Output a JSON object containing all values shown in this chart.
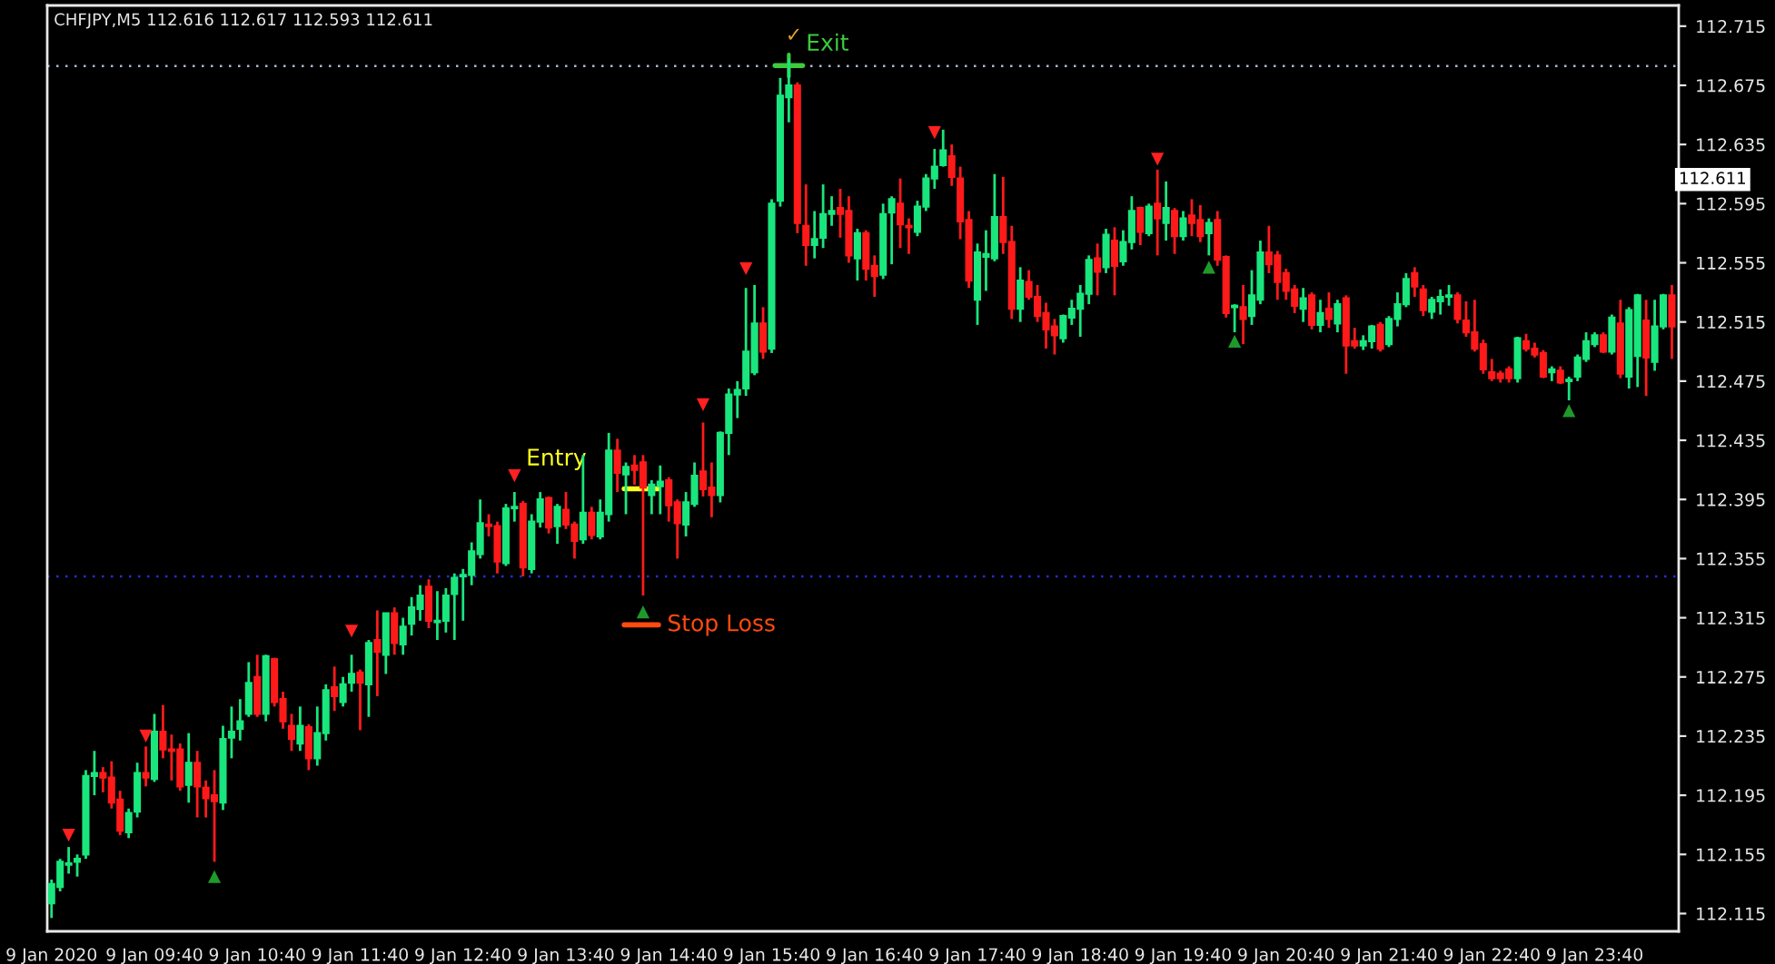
{
  "chart_data": {
    "type": "candlestick",
    "title": "CHFJPY,M5 112.616 112.617 112.593 112.611",
    "categories": [
      "9 Jan 2020",
      null,
      null,
      null,
      null,
      null,
      null,
      null,
      null,
      null,
      null,
      null,
      "9 Jan 09:40",
      null,
      null,
      null,
      null,
      null,
      null,
      null,
      null,
      null,
      null,
      null,
      "9 Jan 10:40",
      null,
      null,
      null,
      null,
      null,
      null,
      null,
      null,
      null,
      null,
      null,
      "9 Jan 11:40",
      null,
      null,
      null,
      null,
      null,
      null,
      null,
      null,
      null,
      null,
      null,
      "9 Jan 12:40",
      null,
      null,
      null,
      null,
      null,
      null,
      null,
      null,
      null,
      null,
      null,
      "9 Jan 13:40",
      null,
      null,
      null,
      null,
      null,
      null,
      null,
      null,
      null,
      null,
      null,
      "9 Jan 14:40",
      null,
      null,
      null,
      null,
      null,
      null,
      null,
      null,
      null,
      null,
      null,
      "9 Jan 15:40",
      null,
      null,
      null,
      null,
      null,
      null,
      null,
      null,
      null,
      null,
      null,
      "9 Jan 16:40",
      null,
      null,
      null,
      null,
      null,
      null,
      null,
      null,
      null,
      null,
      null,
      "9 Jan 17:40",
      null,
      null,
      null,
      null,
      null,
      null,
      null,
      null,
      null,
      null,
      null,
      "9 Jan 18:40",
      null,
      null,
      null,
      null,
      null,
      null,
      null,
      null,
      null,
      null,
      null,
      "9 Jan 19:40",
      null,
      null,
      null,
      null,
      null,
      null,
      null,
      null,
      null,
      null,
      null,
      "9 Jan 20:40",
      null,
      null,
      null,
      null,
      null,
      null,
      null,
      null,
      null,
      null,
      null,
      "9 Jan 21:40",
      null,
      null,
      null,
      null,
      null,
      null,
      null,
      null,
      null,
      null,
      null,
      "9 Jan 22:40",
      null,
      null,
      null,
      null,
      null,
      null,
      null,
      null,
      null,
      null,
      null,
      "9 Jan 23:40",
      null,
      null,
      null,
      null,
      null,
      null,
      null,
      null,
      null
    ],
    "ohlc": [
      [
        112.122,
        112.138,
        112.112,
        112.135
      ],
      [
        112.133,
        112.152,
        112.13,
        112.15
      ],
      [
        112.148,
        112.16,
        112.142,
        112.149
      ],
      [
        112.15,
        112.155,
        112.14,
        112.152
      ],
      [
        112.155,
        112.212,
        112.152,
        112.208
      ],
      [
        112.208,
        112.225,
        112.195,
        112.21
      ],
      [
        112.21,
        112.214,
        112.197,
        112.207
      ],
      [
        112.207,
        112.218,
        112.186,
        112.19
      ],
      [
        112.192,
        112.198,
        112.168,
        112.171
      ],
      [
        112.17,
        112.186,
        112.166,
        112.183
      ],
      [
        112.184,
        112.217,
        112.18,
        112.21
      ],
      [
        112.21,
        112.228,
        112.201,
        112.207
      ],
      [
        112.206,
        112.25,
        112.204,
        112.238
      ],
      [
        112.238,
        112.256,
        112.22,
        112.226
      ],
      [
        112.226,
        112.236,
        112.205,
        112.225
      ],
      [
        112.226,
        112.23,
        112.198,
        112.201
      ],
      [
        112.202,
        112.237,
        112.19,
        112.217
      ],
      [
        112.217,
        112.225,
        112.18,
        112.201
      ],
      [
        112.2,
        112.205,
        112.18,
        112.193
      ],
      [
        112.195,
        112.212,
        112.15,
        112.191
      ],
      [
        112.19,
        112.242,
        112.185,
        112.233
      ],
      [
        112.234,
        112.255,
        112.22,
        112.238
      ],
      [
        112.24,
        112.26,
        112.232,
        112.245
      ],
      [
        112.25,
        112.285,
        112.248,
        112.271
      ],
      [
        112.275,
        112.29,
        112.248,
        112.25
      ],
      [
        112.25,
        112.29,
        112.245,
        112.289
      ],
      [
        112.287,
        112.288,
        112.255,
        112.258
      ],
      [
        112.26,
        112.265,
        112.24,
        112.245
      ],
      [
        112.242,
        112.25,
        112.225,
        112.233
      ],
      [
        112.23,
        112.255,
        112.225,
        112.242
      ],
      [
        112.241,
        112.243,
        112.212,
        112.22
      ],
      [
        112.22,
        112.255,
        112.215,
        112.237
      ],
      [
        112.237,
        112.27,
        112.232,
        112.266
      ],
      [
        112.268,
        112.282,
        112.252,
        112.262
      ],
      [
        112.258,
        112.275,
        112.255,
        112.27
      ],
      [
        112.271,
        112.29,
        112.265,
        112.277
      ],
      [
        112.278,
        112.28,
        112.239,
        112.271
      ],
      [
        112.27,
        112.3,
        112.248,
        112.298
      ],
      [
        112.3,
        112.32,
        112.262,
        112.292
      ],
      [
        112.29,
        112.318,
        112.277,
        112.318
      ],
      [
        112.318,
        112.322,
        112.29,
        112.298
      ],
      [
        112.297,
        112.315,
        112.29,
        112.309
      ],
      [
        112.311,
        112.329,
        112.303,
        112.322
      ],
      [
        112.321,
        112.337,
        112.313,
        112.33
      ],
      [
        112.336,
        112.341,
        112.308,
        112.313
      ],
      [
        112.312,
        112.333,
        112.3,
        112.313
      ],
      [
        112.313,
        112.335,
        112.305,
        112.33
      ],
      [
        112.331,
        112.345,
        112.3,
        112.342
      ],
      [
        112.343,
        112.348,
        112.313,
        112.344
      ],
      [
        112.344,
        112.366,
        112.337,
        112.36
      ],
      [
        112.358,
        112.395,
        112.355,
        112.379
      ],
      [
        112.378,
        112.385,
        112.37,
        112.377
      ],
      [
        112.377,
        112.38,
        112.345,
        112.353
      ],
      [
        112.352,
        112.392,
        112.35,
        112.389
      ],
      [
        112.389,
        112.4,
        112.38,
        112.39
      ],
      [
        112.392,
        112.394,
        112.343,
        112.349
      ],
      [
        112.348,
        112.385,
        112.345,
        112.38
      ],
      [
        112.38,
        112.4,
        112.376,
        112.395
      ],
      [
        112.396,
        112.397,
        112.372,
        112.376
      ],
      [
        112.377,
        112.392,
        112.365,
        112.39
      ],
      [
        112.388,
        112.4,
        112.375,
        112.378
      ],
      [
        112.378,
        112.38,
        112.355,
        112.367
      ],
      [
        112.368,
        112.425,
        112.365,
        112.386
      ],
      [
        112.386,
        112.39,
        112.368,
        112.371
      ],
      [
        112.37,
        112.395,
        112.368,
        112.386
      ],
      [
        112.385,
        112.44,
        112.38,
        112.428
      ],
      [
        112.428,
        112.436,
        112.4,
        112.413
      ],
      [
        112.412,
        112.42,
        112.385,
        112.417
      ],
      [
        112.418,
        112.425,
        112.405,
        112.415
      ],
      [
        112.42,
        112.425,
        112.33,
        112.403
      ],
      [
        112.398,
        112.408,
        112.385,
        112.405
      ],
      [
        112.404,
        112.418,
        112.385,
        112.407
      ],
      [
        112.408,
        112.41,
        112.38,
        112.391
      ],
      [
        112.393,
        112.395,
        112.355,
        112.379
      ],
      [
        112.378,
        112.4,
        112.37,
        112.393
      ],
      [
        112.392,
        112.42,
        112.39,
        112.411
      ],
      [
        112.414,
        112.447,
        112.397,
        112.402
      ],
      [
        112.403,
        112.42,
        112.383,
        112.398
      ],
      [
        112.398,
        112.441,
        112.393,
        112.44
      ],
      [
        112.44,
        112.47,
        112.425,
        112.466
      ],
      [
        112.466,
        112.475,
        112.45,
        112.469
      ],
      [
        112.47,
        112.538,
        112.465,
        112.495
      ],
      [
        112.481,
        112.54,
        112.479,
        112.514
      ],
      [
        112.514,
        112.525,
        112.49,
        112.495
      ],
      [
        112.497,
        112.598,
        112.494,
        112.595
      ],
      [
        112.597,
        112.68,
        112.593,
        112.668
      ],
      [
        112.667,
        112.693,
        112.65,
        112.675
      ],
      [
        112.675,
        112.677,
        112.575,
        112.582
      ],
      [
        112.58,
        112.608,
        112.553,
        112.567
      ],
      [
        112.567,
        112.59,
        112.558,
        112.571
      ],
      [
        112.572,
        112.608,
        112.565,
        112.588
      ],
      [
        112.588,
        112.6,
        112.58,
        112.59
      ],
      [
        112.592,
        112.605,
        112.572,
        112.588
      ],
      [
        112.59,
        112.6,
        112.555,
        112.56
      ],
      [
        112.558,
        112.578,
        112.543,
        112.575
      ],
      [
        112.575,
        112.577,
        112.543,
        112.551
      ],
      [
        112.553,
        112.56,
        112.532,
        112.546
      ],
      [
        112.547,
        112.595,
        112.544,
        112.588
      ],
      [
        112.589,
        112.6,
        112.554,
        112.598
      ],
      [
        112.595,
        112.612,
        112.565,
        112.581
      ],
      [
        112.58,
        112.585,
        112.561,
        112.579
      ],
      [
        112.576,
        112.597,
        112.573,
        112.593
      ],
      [
        112.593,
        112.615,
        112.59,
        112.612
      ],
      [
        112.612,
        112.632,
        112.605,
        112.62
      ],
      [
        112.621,
        112.645,
        112.62,
        112.631
      ],
      [
        112.627,
        112.635,
        112.607,
        112.613
      ],
      [
        112.612,
        112.62,
        112.571,
        112.583
      ],
      [
        112.584,
        112.59,
        112.538,
        112.543
      ],
      [
        112.53,
        112.568,
        112.513,
        112.562
      ],
      [
        112.559,
        112.577,
        112.536,
        112.561
      ],
      [
        112.558,
        112.615,
        112.556,
        112.586
      ],
      [
        112.586,
        112.613,
        112.561,
        112.569
      ],
      [
        112.569,
        112.58,
        112.517,
        112.524
      ],
      [
        112.524,
        112.552,
        112.515,
        112.543
      ],
      [
        112.542,
        112.55,
        112.53,
        112.532
      ],
      [
        112.532,
        112.54,
        112.515,
        112.519
      ],
      [
        112.521,
        112.528,
        112.497,
        112.51
      ],
      [
        112.512,
        112.517,
        112.493,
        112.506
      ],
      [
        112.504,
        112.52,
        112.501,
        112.519
      ],
      [
        112.518,
        112.53,
        112.513,
        112.524
      ],
      [
        112.524,
        112.54,
        112.505,
        112.534
      ],
      [
        112.534,
        112.56,
        112.527,
        112.557
      ],
      [
        112.558,
        112.568,
        112.533,
        112.549
      ],
      [
        112.552,
        112.578,
        112.548,
        112.574
      ],
      [
        112.57,
        112.579,
        112.533,
        112.553
      ],
      [
        112.556,
        112.577,
        112.553,
        112.569
      ],
      [
        112.569,
        112.6,
        112.564,
        112.59
      ],
      [
        112.592,
        112.593,
        112.567,
        112.576
      ],
      [
        112.575,
        112.595,
        112.573,
        112.593
      ],
      [
        112.595,
        112.618,
        112.56,
        112.585
      ],
      [
        112.582,
        112.61,
        112.57,
        112.592
      ],
      [
        112.59,
        112.592,
        112.561,
        112.573
      ],
      [
        112.573,
        112.59,
        112.57,
        112.585
      ],
      [
        112.587,
        112.598,
        112.573,
        112.582
      ],
      [
        112.584,
        112.594,
        112.569,
        112.573
      ],
      [
        112.575,
        112.585,
        112.56,
        112.582
      ],
      [
        112.584,
        112.59,
        112.553,
        112.557
      ],
      [
        112.559,
        112.56,
        112.518,
        112.521
      ],
      [
        112.525,
        112.527,
        112.508,
        112.526
      ],
      [
        112.525,
        112.54,
        112.5,
        112.517
      ],
      [
        112.519,
        112.55,
        112.513,
        112.533
      ],
      [
        112.53,
        112.57,
        112.527,
        112.562
      ],
      [
        112.562,
        112.58,
        112.548,
        112.554
      ],
      [
        112.56,
        112.563,
        112.53,
        112.542
      ],
      [
        112.548,
        112.551,
        112.53,
        112.536
      ],
      [
        112.537,
        112.54,
        112.521,
        112.526
      ],
      [
        112.524,
        112.538,
        112.515,
        112.531
      ],
      [
        112.533,
        112.535,
        112.51,
        112.513
      ],
      [
        112.513,
        112.53,
        112.508,
        112.521
      ],
      [
        112.524,
        112.535,
        112.511,
        112.517
      ],
      [
        112.514,
        112.53,
        112.508,
        112.527
      ],
      [
        112.531,
        112.533,
        112.48,
        112.499
      ],
      [
        112.502,
        112.511,
        112.497,
        112.499
      ],
      [
        112.499,
        112.506,
        112.496,
        112.502
      ],
      [
        112.502,
        112.513,
        112.497,
        112.512
      ],
      [
        112.513,
        112.515,
        112.495,
        112.497
      ],
      [
        112.5,
        112.519,
        112.498,
        112.517
      ],
      [
        112.517,
        112.535,
        112.512,
        112.527
      ],
      [
        112.527,
        112.548,
        112.525,
        112.544
      ],
      [
        112.548,
        112.552,
        112.532,
        112.539
      ],
      [
        112.537,
        112.54,
        112.519,
        112.523
      ],
      [
        112.522,
        112.532,
        112.517,
        112.53
      ],
      [
        112.529,
        112.537,
        112.52,
        112.532
      ],
      [
        112.532,
        112.54,
        112.526,
        112.533
      ],
      [
        112.533,
        112.535,
        112.514,
        112.517
      ],
      [
        112.516,
        112.529,
        112.505,
        112.508
      ],
      [
        112.508,
        112.53,
        112.495,
        112.497
      ],
      [
        112.5,
        112.503,
        112.48,
        112.483
      ],
      [
        112.481,
        112.49,
        112.475,
        112.477
      ],
      [
        112.48,
        112.482,
        112.474,
        112.477
      ],
      [
        112.483,
        112.485,
        112.474,
        112.477
      ],
      [
        112.477,
        112.505,
        112.474,
        112.504
      ],
      [
        112.502,
        112.507,
        112.495,
        112.497
      ],
      [
        112.497,
        112.501,
        112.491,
        112.493
      ],
      [
        112.494,
        112.496,
        112.477,
        112.478
      ],
      [
        112.481,
        112.485,
        112.475,
        112.483
      ],
      [
        112.482,
        112.485,
        112.473,
        112.474
      ],
      [
        112.475,
        112.478,
        112.462,
        112.476
      ],
      [
        112.478,
        112.493,
        112.475,
        112.491
      ],
      [
        112.49,
        112.508,
        112.488,
        112.502
      ],
      [
        112.5,
        112.508,
        112.498,
        112.506
      ],
      [
        112.506,
        112.508,
        112.494,
        112.495
      ],
      [
        112.495,
        112.52,
        112.493,
        112.518
      ],
      [
        112.514,
        112.53,
        112.477,
        112.48
      ],
      [
        112.478,
        112.525,
        112.47,
        112.523
      ],
      [
        112.492,
        112.534,
        112.471,
        112.533
      ],
      [
        112.516,
        112.53,
        112.465,
        112.491
      ],
      [
        112.488,
        112.53,
        112.482,
        112.512
      ],
      [
        112.512,
        112.534,
        112.51,
        112.533
      ],
      [
        112.533,
        112.54,
        112.49,
        112.512
      ]
    ],
    "colors": [
      "#19e67d",
      "#19e67d",
      "#19e67d",
      "#19e67d",
      "#19e67d",
      "#19e67d",
      "#ff1a1a",
      "#ff1a1a",
      "#ff1a1a",
      "#19e67d",
      "#19e67d",
      "#ff1a1a",
      "#19e67d",
      "#ff1a1a",
      "#ff1a1a",
      "#ff1a1a",
      "#19e67d",
      "#ff1a1a",
      "#ff1a1a",
      "#ff1a1a",
      "#19e67d",
      "#19e67d",
      "#19e67d",
      "#19e67d",
      "#ff1a1a",
      "#19e67d",
      "#ff1a1a",
      "#ff1a1a",
      "#ff1a1a",
      "#19e67d",
      "#ff1a1a",
      "#19e67d",
      "#19e67d",
      "#ff1a1a",
      "#19e67d",
      "#19e67d",
      "#ff1a1a",
      "#19e67d",
      "#ff1a1a",
      "#19e67d",
      "#ff1a1a",
      "#19e67d",
      "#19e67d",
      "#19e67d",
      "#ff1a1a",
      "#19e67d",
      "#19e67d",
      "#19e67d",
      "#19e67d",
      "#19e67d",
      "#19e67d",
      "#ff1a1a",
      "#ff1a1a",
      "#19e67d",
      "#19e67d",
      "#ff1a1a",
      "#19e67d",
      "#19e67d",
      "#ff1a1a",
      "#19e67d",
      "#ff1a1a",
      "#ff1a1a",
      "#19e67d",
      "#ff1a1a",
      "#19e67d",
      "#19e67d",
      "#ff1a1a",
      "#19e67d",
      "#ff1a1a",
      "#ff1a1a",
      "#19e67d",
      "#19e67d",
      "#ff1a1a",
      "#ff1a1a",
      "#19e67d",
      "#19e67d",
      "#ff1a1a",
      "#ff1a1a",
      "#19e67d",
      "#19e67d",
      "#19e67d",
      "#19e67d",
      "#19e67d",
      "#ff1a1a",
      "#19e67d",
      "#19e67d",
      "#19e67d",
      "#ff1a1a",
      "#ff1a1a",
      "#19e67d",
      "#19e67d",
      "#19e67d",
      "#ff1a1a",
      "#ff1a1a",
      "#19e67d",
      "#ff1a1a",
      "#ff1a1a",
      "#19e67d",
      "#19e67d",
      "#ff1a1a",
      "#ff1a1a",
      "#19e67d",
      "#19e67d",
      "#19e67d",
      "#19e67d",
      "#ff1a1a",
      "#ff1a1a",
      "#ff1a1a",
      "#19e67d",
      "#19e67d",
      "#19e67d",
      "#ff1a1a",
      "#ff1a1a",
      "#19e67d",
      "#ff1a1a",
      "#ff1a1a",
      "#ff1a1a",
      "#ff1a1a",
      "#19e67d",
      "#19e67d",
      "#19e67d",
      "#19e67d",
      "#ff1a1a",
      "#19e67d",
      "#ff1a1a",
      "#19e67d",
      "#19e67d",
      "#ff1a1a",
      "#19e67d",
      "#ff1a1a",
      "#19e67d",
      "#ff1a1a",
      "#19e67d",
      "#ff1a1a",
      "#ff1a1a",
      "#19e67d",
      "#ff1a1a",
      "#ff1a1a",
      "#19e67d",
      "#ff1a1a",
      "#19e67d",
      "#19e67d",
      "#ff1a1a",
      "#ff1a1a",
      "#ff1a1a",
      "#ff1a1a",
      "#19e67d",
      "#ff1a1a",
      "#19e67d",
      "#ff1a1a",
      "#19e67d",
      "#ff1a1a",
      "#ff1a1a",
      "#19e67d",
      "#19e67d",
      "#ff1a1a",
      "#19e67d",
      "#19e67d",
      "#19e67d",
      "#ff1a1a",
      "#ff1a1a",
      "#19e67d",
      "#19e67d",
      "#19e67d",
      "#ff1a1a",
      "#ff1a1a",
      "#ff1a1a",
      "#ff1a1a",
      "#ff1a1a",
      "#ff1a1a",
      "#ff1a1a",
      "#19e67d",
      "#ff1a1a",
      "#ff1a1a",
      "#ff1a1a",
      "#19e67d",
      "#ff1a1a",
      "#19e67d",
      "#19e67d",
      "#19e67d",
      "#19e67d",
      "#ff1a1a",
      "#19e67d",
      "#ff1a1a",
      "#19e67d",
      "#19e67d",
      "#ff1a1a",
      "#19e67d",
      "#19e67d",
      "#ff1a1a"
    ],
    "series": [
      {
        "type": "scatter",
        "color": "#ff2020",
        "marker": "triangle_down",
        "values": [
          null,
          null,
          112.168,
          null,
          null,
          null,
          null,
          null,
          null,
          null,
          null,
          112.235,
          null,
          null,
          null,
          null,
          null,
          null,
          null,
          null,
          null,
          null,
          null,
          null,
          null,
          null,
          null,
          null,
          null,
          null,
          null,
          null,
          null,
          null,
          null,
          112.306,
          null,
          null,
          null,
          null,
          null,
          null,
          null,
          null,
          null,
          null,
          null,
          null,
          null,
          null,
          null,
          null,
          null,
          null,
          112.411,
          null,
          null,
          null,
          null,
          null,
          null,
          null,
          null,
          null,
          null,
          null,
          null,
          null,
          null,
          null,
          null,
          null,
          null,
          null,
          null,
          null,
          112.459,
          null,
          null,
          null,
          null,
          112.551,
          null,
          null,
          null,
          null,
          null,
          null,
          null,
          null,
          null,
          null,
          null,
          null,
          null,
          null,
          null,
          null,
          null,
          null,
          null,
          null,
          null,
          112.643,
          null,
          null,
          null,
          null,
          null,
          null,
          null,
          null,
          null,
          null,
          null,
          null,
          null,
          null,
          null,
          null,
          null,
          null,
          null,
          null,
          null,
          null,
          null,
          null,
          null,
          112.625,
          null,
          null,
          null,
          null,
          null,
          null,
          null,
          null,
          null,
          null,
          null,
          null,
          null,
          null,
          null,
          null,
          null,
          null,
          null,
          null,
          null,
          null,
          null,
          null,
          null,
          null,
          null,
          null,
          null,
          null,
          null,
          null,
          null,
          null,
          null,
          null,
          null,
          null,
          null,
          null,
          null,
          null,
          null,
          null,
          null,
          null,
          null,
          null,
          null,
          null,
          null,
          null,
          null,
          null,
          null,
          null,
          null,
          null,
          null,
          null
        ]
      },
      {
        "type": "scatter",
        "color": "#1f9a2a",
        "marker": "triangle",
        "values": [
          null,
          null,
          null,
          null,
          null,
          null,
          null,
          null,
          null,
          null,
          null,
          null,
          null,
          null,
          null,
          null,
          null,
          null,
          null,
          112.14,
          null,
          null,
          null,
          null,
          null,
          null,
          null,
          null,
          null,
          null,
          null,
          null,
          null,
          null,
          null,
          null,
          null,
          null,
          null,
          null,
          null,
          null,
          null,
          null,
          null,
          null,
          null,
          null,
          null,
          null,
          null,
          null,
          null,
          null,
          null,
          null,
          null,
          null,
          null,
          null,
          null,
          null,
          null,
          null,
          null,
          null,
          null,
          null,
          null,
          112.319,
          null,
          null,
          null,
          null,
          null,
          null,
          null,
          null,
          null,
          null,
          null,
          null,
          null,
          null,
          null,
          null,
          null,
          null,
          null,
          null,
          null,
          null,
          null,
          null,
          null,
          null,
          null,
          null,
          null,
          null,
          null,
          null,
          null,
          null,
          null,
          null,
          null,
          null,
          null,
          null,
          null,
          null,
          null,
          null,
          null,
          null,
          null,
          null,
          null,
          null,
          null,
          null,
          null,
          null,
          null,
          null,
          null,
          null,
          null,
          null,
          null,
          null,
          null,
          null,
          null,
          112.552,
          null,
          null,
          112.502,
          null,
          null,
          null,
          null,
          null,
          null,
          null,
          null,
          null,
          null,
          null,
          null,
          null,
          null,
          null,
          null,
          null,
          null,
          null,
          null,
          null,
          null,
          null,
          null,
          null,
          null,
          null,
          null,
          null,
          null,
          null,
          null,
          null,
          null,
          null,
          null,
          null,
          null,
          112.455,
          null,
          null,
          null,
          null,
          null,
          null,
          null,
          null,
          null,
          null,
          null,
          null
        ]
      }
    ],
    "ylim": [
      112.103,
      112.729
    ],
    "yticks": [
      112.115,
      112.155,
      112.195,
      112.235,
      112.275,
      112.315,
      112.355,
      112.395,
      112.435,
      112.475,
      112.515,
      112.555,
      112.595,
      112.635,
      112.675,
      112.715
    ],
    "ref_lines": [
      {
        "axis": "y",
        "value": 112.688,
        "color": "#a8b8d0",
        "line_style": "dotted"
      },
      {
        "axis": "y",
        "value": 112.343,
        "color": "#2a2ad8",
        "line_style": "dotted"
      }
    ],
    "annotations": [
      "✓",
      "Exit",
      "Entry",
      "Stop Loss",
      "112.611"
    ]
  }
}
